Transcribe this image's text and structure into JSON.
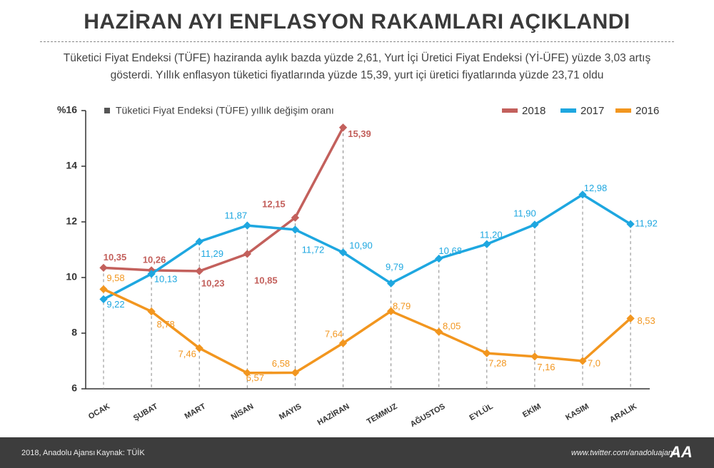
{
  "header": {
    "title": "HAZİRAN AYI ENFLASYON RAKAMLARI AÇIKLANDI",
    "subtitle": "Tüketici Fiyat Endeksi (TÜFE) haziranda aylık bazda yüzde 2,61, Yurt İçi Üretici Fiyat Endeksi (Yİ-ÜFE) yüzde 3,03 artış gösterdi. Yıllık enflasyon tüketici fiyatlarında yüzde 15,39, yurt içi üretici fiyatlarında yüzde 23,71 oldu"
  },
  "chart_data": {
    "type": "line",
    "legend_title": "Tüketici Fiyat Endeksi (TÜFE) yıllık değişim oranı",
    "categories": [
      "OCAK",
      "ŞUBAT",
      "MART",
      "NİSAN",
      "MAYIS",
      "HAZİRAN",
      "TEMMUZ",
      "AĞUSTOS",
      "EYLÜL",
      "EKİM",
      "KASIM",
      "ARALIK"
    ],
    "ylim": [
      6,
      16
    ],
    "yticks": [
      6,
      8,
      10,
      12,
      14,
      {
        "value": 16,
        "label": "%16"
      }
    ],
    "legend": "top-right",
    "series": [
      {
        "name": "2018",
        "color": "#c3605c",
        "values": [
          10.35,
          10.26,
          10.23,
          10.85,
          12.15,
          15.39,
          null,
          null,
          null,
          null,
          null,
          null
        ],
        "value_labels": [
          "10,35",
          "10,26",
          "10,23",
          "10,85",
          "12,15",
          "15,39",
          null,
          null,
          null,
          null,
          null,
          null
        ]
      },
      {
        "name": "2017",
        "color": "#1ea7e0",
        "values": [
          9.22,
          10.13,
          11.29,
          11.87,
          11.72,
          10.9,
          9.79,
          10.68,
          11.2,
          11.9,
          12.98,
          11.92
        ],
        "value_labels": [
          "9,22",
          "10,13",
          "11,29",
          "11,87",
          "11,72",
          "10,90",
          "9,79",
          "10,68",
          "11,20",
          "11,90",
          "12,98",
          "11,92"
        ]
      },
      {
        "name": "2016",
        "color": "#f2961f",
        "values": [
          9.58,
          8.78,
          7.46,
          6.57,
          6.58,
          7.64,
          8.79,
          8.05,
          7.28,
          7.16,
          7.0,
          8.53
        ],
        "value_labels": [
          "9,58",
          "8,78",
          "7,46",
          "6,57",
          "6,58",
          "7,64",
          "8,79",
          "8,05",
          "7,28",
          "7,16",
          "7,0",
          "8,53"
        ]
      }
    ]
  },
  "footer": {
    "credit": "2018, Anadolu Ajansı",
    "source": "Kaynak: TÜİK",
    "link": "www.twitter.com/anadoluajansi",
    "logo": "AA"
  }
}
